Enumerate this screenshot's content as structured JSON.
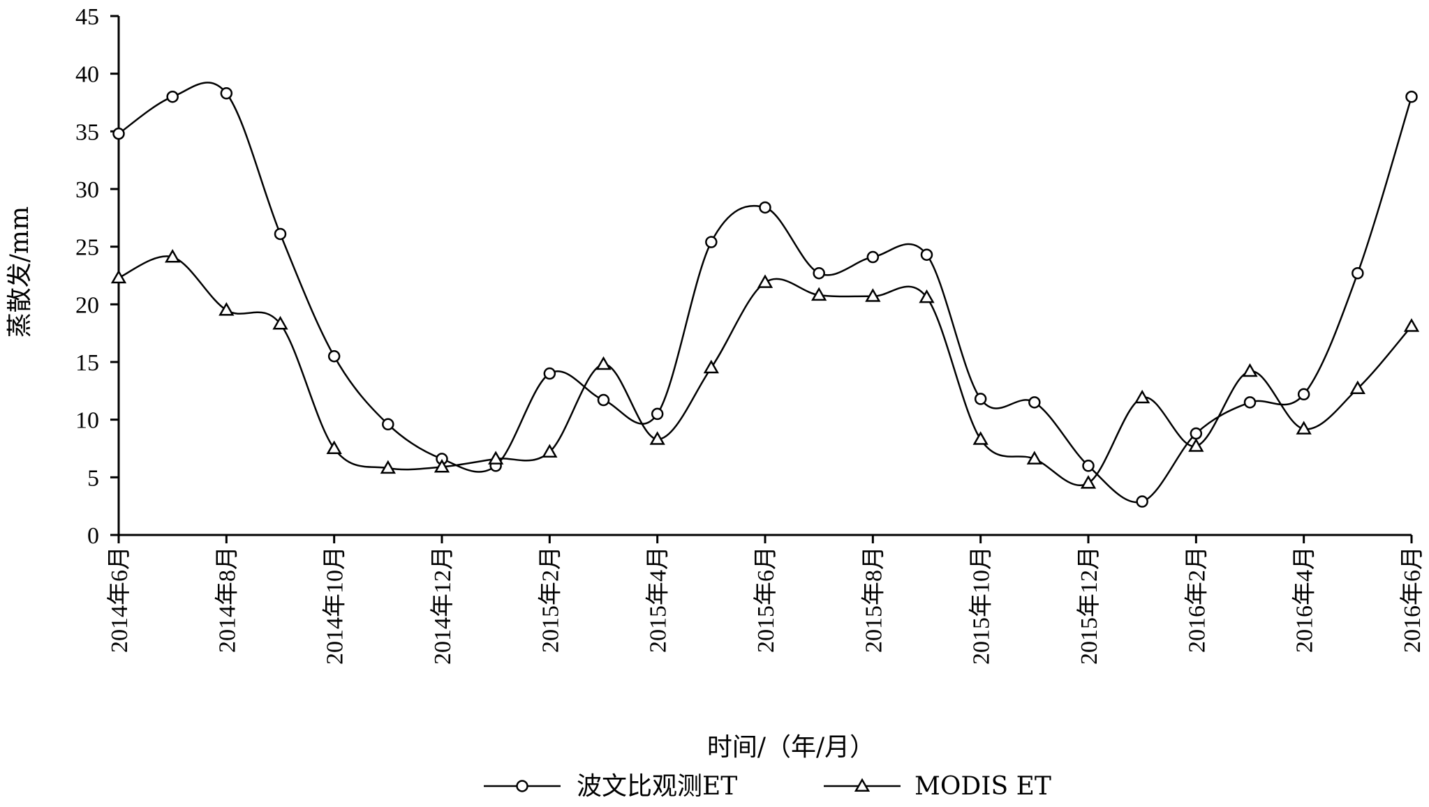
{
  "chart_data": {
    "type": "line",
    "title": "",
    "xlabel": "时间/（年/月）",
    "ylabel": "蒸散发/mm",
    "ylim": [
      0,
      45
    ],
    "yticks": [
      0,
      5,
      10,
      15,
      20,
      25,
      30,
      35,
      40,
      45
    ],
    "x_tick_labels": [
      "2014年6月",
      "2014年8月",
      "2014年10月",
      "2014年12月",
      "2015年2月",
      "2015年4月",
      "2015年6月",
      "2015年8月",
      "2015年10月",
      "2015年12月",
      "2016年2月",
      "2016年4月",
      "2016年6月"
    ],
    "x": [
      "2014-06",
      "2014-07",
      "2014-08",
      "2014-09",
      "2014-10",
      "2014-11",
      "2014-12",
      "2015-01",
      "2015-02",
      "2015-03",
      "2015-04",
      "2015-05",
      "2015-06",
      "2015-07",
      "2015-08",
      "2015-09",
      "2015-10",
      "2015-11",
      "2015-12",
      "2016-01",
      "2016-02",
      "2016-03",
      "2016-04",
      "2016-05",
      "2016-06"
    ],
    "legend_position": "bottom",
    "grid": false,
    "series": [
      {
        "name": "波文比观测ET",
        "marker": "circle",
        "values": [
          34.8,
          38.0,
          38.3,
          26.1,
          15.5,
          9.6,
          6.6,
          6.0,
          14.0,
          11.7,
          10.5,
          25.4,
          28.4,
          22.7,
          24.1,
          24.3,
          11.8,
          11.5,
          6.0,
          2.9,
          8.8,
          11.5,
          12.2,
          22.7,
          38.0
        ]
      },
      {
        "name": "MODIS ET",
        "marker": "triangle",
        "values": [
          22.3,
          24.1,
          19.5,
          18.3,
          7.5,
          5.8,
          5.9,
          6.6,
          7.2,
          14.8,
          8.3,
          14.5,
          21.9,
          20.8,
          20.7,
          20.6,
          8.3,
          6.6,
          4.5,
          11.9,
          7.7,
          14.2,
          9.2,
          12.7,
          18.1
        ]
      }
    ]
  }
}
